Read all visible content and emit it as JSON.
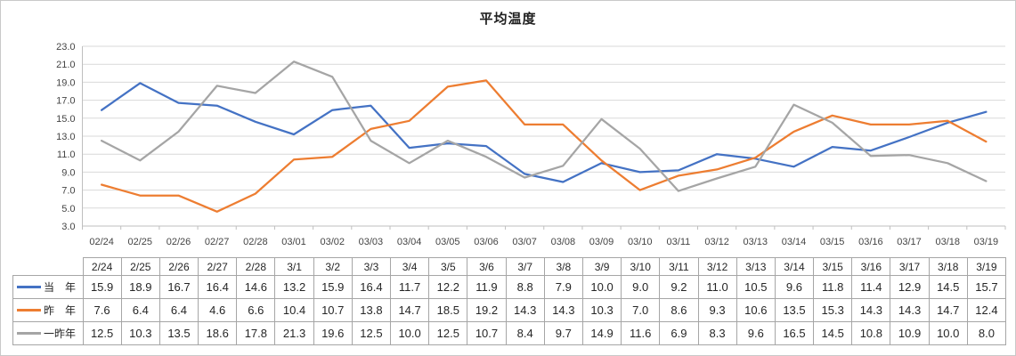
{
  "chart_data": {
    "type": "line",
    "title": "平均温度",
    "xlabel": "",
    "ylabel": "",
    "ylim": [
      3.0,
      23.0
    ],
    "y_step": 2.0,
    "grid": true,
    "legend_position": "table-left",
    "y_tick_labels": [
      "23.0",
      "21.0",
      "19.0",
      "17.0",
      "15.0",
      "13.0",
      "11.0",
      "9.0",
      "7.0",
      "5.0",
      "3.0"
    ],
    "x_categories": [
      "02/24",
      "02/25",
      "02/26",
      "02/27",
      "02/28",
      "03/01",
      "03/02",
      "03/03",
      "03/04",
      "03/05",
      "03/06",
      "03/07",
      "03/08",
      "03/09",
      "03/10",
      "03/11",
      "03/12",
      "03/13",
      "03/14",
      "03/15",
      "03/16",
      "03/17",
      "03/18",
      "03/19"
    ],
    "series": [
      {
        "key": "this-year",
        "name": "当　年",
        "color": "#4472C4",
        "values": [
          15.9,
          18.9,
          16.7,
          16.4,
          14.6,
          13.2,
          15.9,
          16.4,
          11.7,
          12.2,
          11.9,
          8.8,
          7.9,
          10.0,
          9.0,
          9.2,
          11.0,
          10.5,
          9.6,
          11.8,
          11.4,
          12.9,
          14.5,
          15.7
        ]
      },
      {
        "key": "last-year",
        "name": "昨　年",
        "color": "#ED7D31",
        "values": [
          7.6,
          6.4,
          6.4,
          4.6,
          6.6,
          10.4,
          10.7,
          13.8,
          14.7,
          18.5,
          19.2,
          14.3,
          14.3,
          10.3,
          7.0,
          8.6,
          9.3,
          10.6,
          13.5,
          15.3,
          14.3,
          14.3,
          14.7,
          12.4
        ]
      },
      {
        "key": "two-years-ago",
        "name": "一昨年",
        "color": "#A5A5A5",
        "values": [
          12.5,
          10.3,
          13.5,
          18.6,
          17.8,
          21.3,
          19.6,
          12.5,
          10.0,
          12.5,
          10.7,
          8.4,
          9.7,
          14.9,
          11.6,
          6.9,
          8.3,
          9.6,
          16.5,
          14.5,
          10.8,
          10.9,
          10.0,
          8.0
        ]
      }
    ]
  },
  "table": {
    "header_dates": [
      "2/24",
      "2/25",
      "2/26",
      "2/27",
      "2/28",
      "3/1",
      "3/2",
      "3/3",
      "3/4",
      "3/5",
      "3/6",
      "3/7",
      "3/8",
      "3/9",
      "3/10",
      "3/11",
      "3/12",
      "3/13",
      "3/14",
      "3/15",
      "3/16",
      "3/17",
      "3/18",
      "3/19"
    ]
  },
  "colors": {
    "gridline": "#d9d9d9",
    "axis_line": "#bfbfbf",
    "table_border": "#a6a6a6",
    "frame_border": "#c9c9c9",
    "axis_text": "#444444"
  }
}
